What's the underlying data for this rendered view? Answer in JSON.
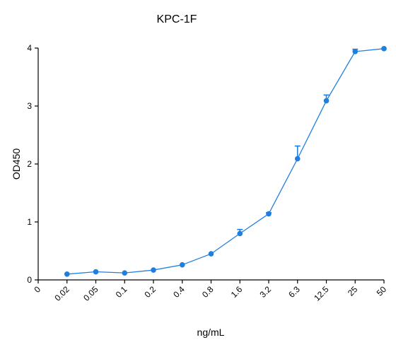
{
  "chart_data": {
    "type": "line",
    "title": "KPC-1F",
    "xlabel": "ng/mL",
    "ylabel": "OD450",
    "x_ticks": [
      "0",
      "0.02",
      "0.05",
      "0.1",
      "0.2",
      "0.4",
      "0.8",
      "1.6",
      "3.2",
      "6.3",
      "12.5",
      "25",
      "50"
    ],
    "y_ticks": [
      "0",
      "1",
      "2",
      "3",
      "4"
    ],
    "ylim": [
      0,
      4
    ],
    "grid": false,
    "legend": "none",
    "series": [
      {
        "color": "#1f7fe0",
        "x": [
          "0.02",
          "0.05",
          "0.1",
          "0.2",
          "0.4",
          "0.8",
          "1.6",
          "3.2",
          "6.3",
          "12.5",
          "25",
          "50"
        ],
        "y": [
          0.1,
          0.14,
          0.12,
          0.17,
          0.26,
          0.45,
          0.8,
          1.14,
          2.09,
          3.09,
          3.94,
          3.99
        ],
        "error": [
          0.01,
          0.01,
          0.01,
          0.01,
          0.01,
          0.01,
          0.07,
          0.02,
          0.22,
          0.1,
          0.04,
          0.01
        ]
      }
    ]
  }
}
